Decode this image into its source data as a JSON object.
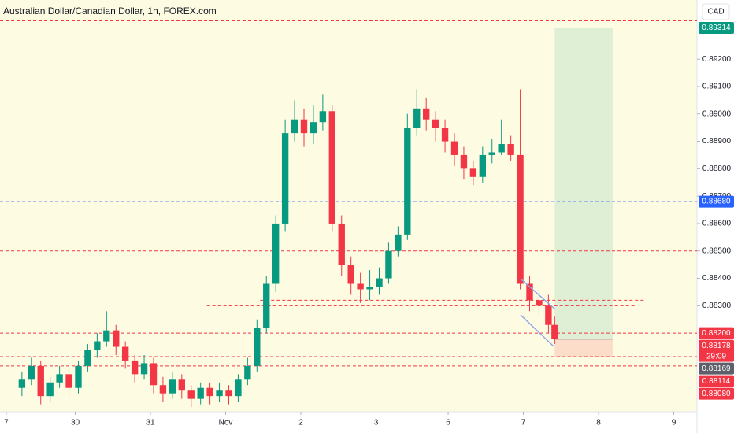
{
  "chart_data": {
    "type": "candlestick",
    "title": "Australian Dollar/Canadian Dollar, 1h, FOREX.com",
    "currency": "CAD",
    "up_color": "#089981",
    "down_color": "#f23645",
    "x": [
      5,
      8,
      11,
      14,
      17,
      20,
      23,
      26,
      29,
      32,
      35,
      38,
      41,
      44,
      47,
      50,
      53,
      56,
      59,
      62,
      65,
      68,
      71,
      74,
      77,
      80,
      83,
      86,
      89,
      92,
      95,
      98,
      101,
      104,
      107,
      110,
      113,
      116,
      119,
      122,
      125,
      128,
      131,
      134,
      137,
      140,
      143,
      146,
      149,
      152,
      155,
      158,
      161,
      164,
      167,
      170,
      173,
      175
    ],
    "open": [
      0.88,
      0.8803,
      0.8808,
      0.8797,
      0.8802,
      0.8805,
      0.88,
      0.8808,
      0.8814,
      0.8817,
      0.8821,
      0.8815,
      0.881,
      0.8805,
      0.8809,
      0.8801,
      0.8798,
      0.8803,
      0.8799,
      0.8796,
      0.88,
      0.8797,
      0.8799,
      0.8797,
      0.8803,
      0.8808,
      0.8822,
      0.8838,
      0.886,
      0.8893,
      0.8898,
      0.8893,
      0.8897,
      0.8901,
      0.886,
      0.8845,
      0.8838,
      0.8836,
      0.8837,
      0.884,
      0.885,
      0.8856,
      0.8895,
      0.8902,
      0.8898,
      0.8895,
      0.889,
      0.8885,
      0.888,
      0.8877,
      0.8885,
      0.8886,
      0.8889,
      0.8885,
      0.8838,
      0.8832,
      0.883,
      0.8823
    ],
    "high": [
      0.8806,
      0.8811,
      0.881,
      0.8804,
      0.8808,
      0.8807,
      0.881,
      0.8816,
      0.882,
      0.8828,
      0.8823,
      0.8817,
      0.8812,
      0.8812,
      0.8811,
      0.8804,
      0.8806,
      0.8805,
      0.8801,
      0.8802,
      0.8802,
      0.8802,
      0.8801,
      0.8805,
      0.8811,
      0.8825,
      0.8841,
      0.8863,
      0.8898,
      0.8905,
      0.8902,
      0.8903,
      0.8907,
      0.8903,
      0.8863,
      0.8848,
      0.8842,
      0.8843,
      0.8844,
      0.8853,
      0.8859,
      0.89,
      0.8909,
      0.8906,
      0.8901,
      0.8898,
      0.8893,
      0.8888,
      0.8883,
      0.8888,
      0.8891,
      0.8898,
      0.8892,
      0.8909,
      0.8841,
      0.8836,
      0.8834,
      0.8826
    ],
    "low": [
      0.8797,
      0.8801,
      0.8794,
      0.8795,
      0.88,
      0.8797,
      0.8798,
      0.8806,
      0.8811,
      0.8815,
      0.8812,
      0.8807,
      0.8802,
      0.8803,
      0.8798,
      0.8795,
      0.8796,
      0.8796,
      0.8793,
      0.8794,
      0.8794,
      0.8795,
      0.8794,
      0.8795,
      0.8801,
      0.8806,
      0.882,
      0.8835,
      0.8857,
      0.889,
      0.8888,
      0.8889,
      0.8894,
      0.8857,
      0.8841,
      0.8834,
      0.8831,
      0.8832,
      0.8834,
      0.8838,
      0.8848,
      0.8854,
      0.8892,
      0.8894,
      0.889,
      0.8886,
      0.8881,
      0.8876,
      0.8874,
      0.8875,
      0.8882,
      0.8885,
      0.8883,
      0.8836,
      0.8828,
      0.8826,
      0.882,
      0.8816
    ],
    "close": [
      0.8803,
      0.8808,
      0.8797,
      0.8802,
      0.8805,
      0.88,
      0.8808,
      0.8814,
      0.8817,
      0.8821,
      0.8815,
      0.881,
      0.8805,
      0.8809,
      0.8801,
      0.8798,
      0.8803,
      0.8799,
      0.8796,
      0.88,
      0.8797,
      0.8799,
      0.8797,
      0.8803,
      0.8808,
      0.8822,
      0.8838,
      0.886,
      0.8893,
      0.8898,
      0.8893,
      0.8897,
      0.8901,
      0.886,
      0.8845,
      0.8838,
      0.8836,
      0.8837,
      0.884,
      0.885,
      0.8856,
      0.8895,
      0.8902,
      0.8898,
      0.8895,
      0.889,
      0.8885,
      0.888,
      0.8877,
      0.8885,
      0.8886,
      0.8889,
      0.8885,
      0.8838,
      0.8832,
      0.883,
      0.8823,
      0.88178
    ],
    "xlim": [
      -2,
      220.4
    ],
    "xticks": [
      {
        "value": 0,
        "label": "7"
      },
      {
        "value": 22,
        "label": "30"
      },
      {
        "value": 46,
        "label": "31"
      },
      {
        "value": 70,
        "label": "Nov"
      },
      {
        "value": 94,
        "label": "2"
      },
      {
        "value": 118,
        "label": "3"
      },
      {
        "value": 141,
        "label": "6"
      },
      {
        "value": 165,
        "label": "7"
      },
      {
        "value": 189,
        "label": "8"
      },
      {
        "value": 213,
        "label": "9"
      }
    ],
    "ylim": [
      0.87913,
      0.89416
    ],
    "yticks": [
      {
        "value": 0.892,
        "label": "0.89200"
      },
      {
        "value": 0.891,
        "label": "0.89100"
      },
      {
        "value": 0.89,
        "label": "0.89000"
      },
      {
        "value": 0.889,
        "label": "0.88900"
      },
      {
        "value": 0.888,
        "label": "0.88800"
      },
      {
        "value": 0.887,
        "label": "0.88700"
      },
      {
        "value": 0.886,
        "label": "0.88600"
      },
      {
        "value": 0.885,
        "label": "0.88500"
      },
      {
        "value": 0.884,
        "label": "0.88400"
      },
      {
        "value": 0.883,
        "label": "0.88300"
      }
    ],
    "levels": [
      {
        "value": 0.8934,
        "color": "#f23645"
      },
      {
        "value": 0.8868,
        "color": "#2962ff"
      },
      {
        "value": 0.885,
        "color": "#f23645"
      },
      {
        "value": 0.8832,
        "color": "#f23645",
        "x_range": [
          81,
          204
        ]
      },
      {
        "value": 0.883,
        "color": "#f23645",
        "x_range": [
          64,
          201
        ]
      },
      {
        "value": 0.882,
        "color": "#f23645"
      },
      {
        "value": 0.88114,
        "color": "#f23645"
      },
      {
        "value": 0.8808,
        "color": "#f23645"
      }
    ],
    "position": {
      "x_range": [
        175,
        193.5
      ],
      "entry": 0.88178,
      "target": 0.89314,
      "stop": 0.88114
    },
    "countdown": "29:09",
    "price_labels": [
      {
        "value": 0.89314,
        "label": "0.89314",
        "color": "#089981"
      },
      {
        "value": 0.8868,
        "label": "0.88680",
        "color": "#2962ff"
      },
      {
        "value": 0.882,
        "label": "0.88200",
        "color": "#f23645"
      },
      {
        "value": 0.88178,
        "label": "0.88178",
        "color": "#f23645"
      },
      {
        "value": 0.88169,
        "label": "0.88169",
        "color": "#5d606b"
      },
      {
        "value": 0.88114,
        "label": "0.88114",
        "color": "#f23645"
      },
      {
        "value": 0.8808,
        "label": "0.88080",
        "color": "#f23645"
      }
    ]
  }
}
